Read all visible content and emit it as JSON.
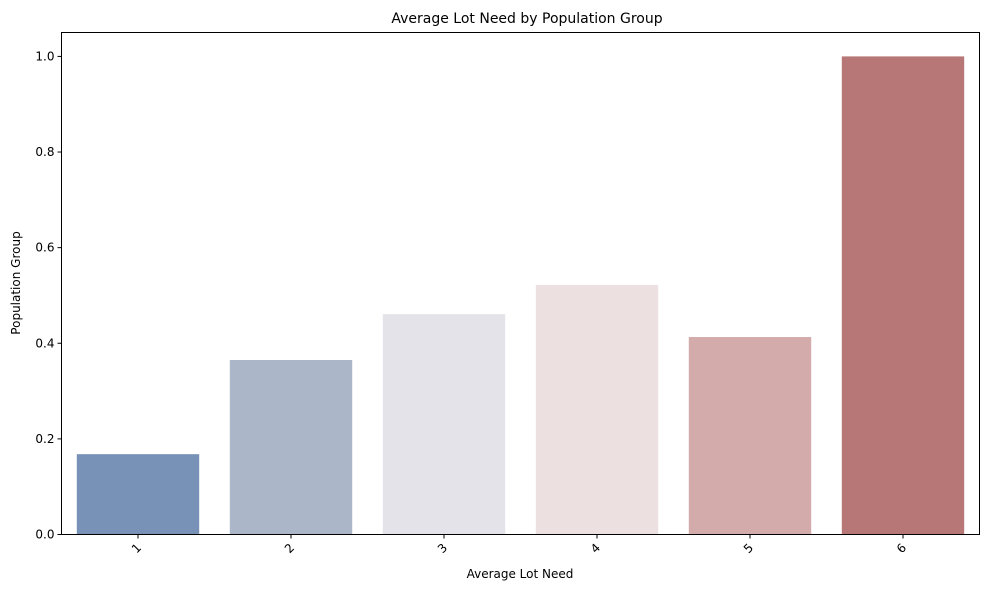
{
  "chart_data": {
    "type": "bar",
    "title": "Average Lot Need by Population Group",
    "xlabel": "Average Lot Need",
    "ylabel": "Population Group",
    "categories": [
      "1",
      "2",
      "3",
      "4",
      "5",
      "6"
    ],
    "values": [
      0.168,
      0.365,
      0.461,
      0.522,
      0.413,
      1.0
    ],
    "colors": [
      "#7891b6",
      "#abb7c9",
      "#e4e3e9",
      "#ede0e0",
      "#d2abaa",
      "#b67776"
    ],
    "ylim": [
      0,
      1.05
    ],
    "yticks": [
      "0.0",
      "0.2",
      "0.4",
      "0.6",
      "0.8",
      "1.0"
    ],
    "grid": false,
    "xtick_rotation": 45
  }
}
